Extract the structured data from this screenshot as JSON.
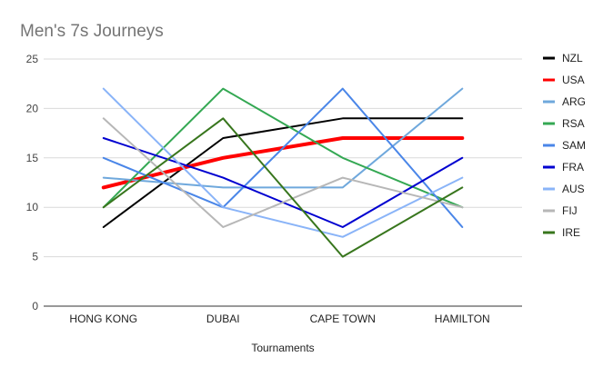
{
  "chart_data": {
    "type": "line",
    "title": "Men's 7s Journeys",
    "xlabel": "Tournaments",
    "ylabel": "",
    "categories": [
      "HONG KONG",
      "DUBAI",
      "CAPE TOWN",
      "HAMILTON"
    ],
    "ylim": [
      0,
      25
    ],
    "yticks": [
      "0",
      "5",
      "10",
      "15",
      "20",
      "25"
    ],
    "grid": true,
    "legend": "right",
    "series": [
      {
        "name": "NZL",
        "color": "#000000",
        "values": [
          8,
          17,
          19,
          19
        ],
        "bold": false
      },
      {
        "name": "USA",
        "color": "#ff0000",
        "values": [
          12,
          15,
          17,
          17
        ],
        "bold": true
      },
      {
        "name": "ARG",
        "color": "#6fa8dc",
        "values": [
          13,
          12,
          12,
          22
        ],
        "bold": false
      },
      {
        "name": "RSA",
        "color": "#34a853",
        "values": [
          10,
          22,
          15,
          10
        ],
        "bold": false
      },
      {
        "name": "SAM",
        "color": "#4a86e8",
        "values": [
          15,
          10,
          22,
          8
        ],
        "bold": false
      },
      {
        "name": "FRA",
        "color": "#0000d0",
        "values": [
          17,
          13,
          8,
          15
        ],
        "bold": false
      },
      {
        "name": "AUS",
        "color": "#8ab4f8",
        "values": [
          22,
          10,
          7,
          13
        ],
        "bold": false
      },
      {
        "name": "FIJ",
        "color": "#b7b7b7",
        "values": [
          19,
          8,
          13,
          10
        ],
        "bold": false
      },
      {
        "name": "IRE",
        "color": "#38761d",
        "values": [
          10,
          19,
          5,
          12
        ],
        "bold": false
      }
    ]
  }
}
